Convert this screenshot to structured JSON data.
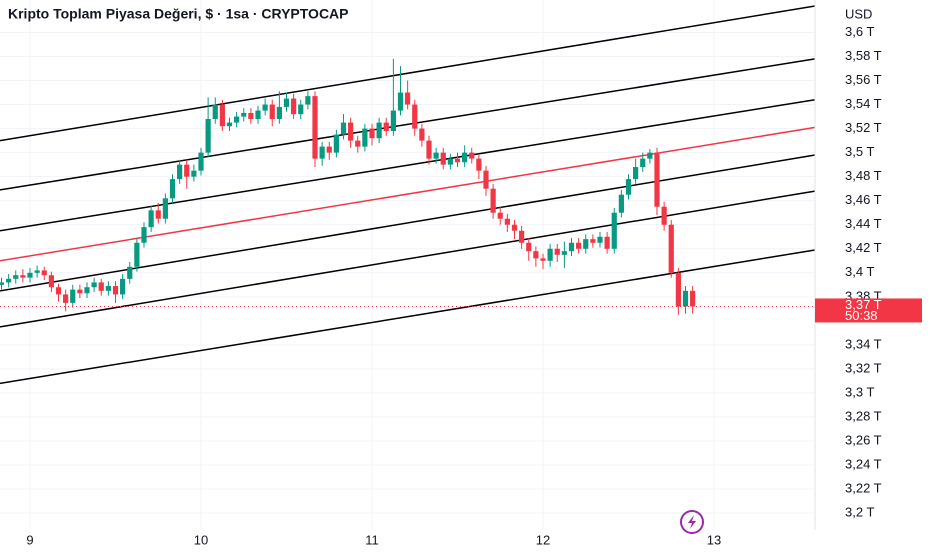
{
  "chart_data": {
    "type": "candlestick",
    "title": "Kripto Toplam Piyasa Değeri, $ · 1sa · CRYPTOCAP",
    "currency": "USD",
    "up_color": "#089981",
    "down_color": "#f23645",
    "grid": true,
    "categories": [
      null,
      null,
      null,
      null,
      "9",
      null,
      null,
      null,
      null,
      null,
      null,
      null,
      null,
      null,
      null,
      null,
      null,
      null,
      null,
      null,
      null,
      null,
      null,
      null,
      null,
      null,
      null,
      null,
      "10",
      null,
      null,
      null,
      null,
      null,
      null,
      null,
      null,
      null,
      null,
      null,
      null,
      null,
      null,
      null,
      null,
      null,
      null,
      null,
      null,
      null,
      null,
      null,
      "11",
      null,
      null,
      null,
      null,
      null,
      null,
      null,
      null,
      null,
      null,
      null,
      null,
      null,
      null,
      null,
      null,
      null,
      null,
      null,
      null,
      null,
      null,
      null,
      "12",
      null,
      null,
      null,
      null,
      null,
      null,
      null,
      null,
      null,
      null,
      null,
      null,
      null,
      null,
      null,
      null,
      null,
      null,
      null,
      null,
      null,
      null,
      null,
      "13"
    ],
    "open": [
      3.39,
      3.392,
      3.395,
      3.398,
      3.396,
      3.4,
      3.402,
      3.398,
      3.388,
      3.382,
      3.375,
      3.386,
      3.383,
      3.388,
      3.392,
      3.385,
      3.389,
      3.382,
      3.395,
      3.405,
      3.425,
      3.438,
      3.452,
      3.445,
      3.462,
      3.478,
      3.49,
      3.48,
      3.485,
      3.5,
      3.528,
      3.54,
      3.522,
      3.525,
      3.53,
      3.533,
      3.528,
      3.535,
      3.54,
      3.528,
      3.538,
      3.545,
      3.532,
      3.54,
      3.547,
      3.495,
      3.505,
      3.5,
      3.515,
      3.525,
      3.51,
      3.505,
      3.52,
      3.512,
      3.525,
      3.518,
      3.535,
      3.55,
      3.54,
      3.52,
      3.51,
      3.495,
      3.5,
      3.49,
      3.495,
      3.492,
      3.5,
      3.495,
      3.485,
      3.47,
      3.45,
      3.445,
      3.44,
      3.435,
      3.425,
      3.418,
      3.412,
      3.41,
      3.42,
      3.415,
      3.418,
      3.425,
      3.42,
      3.428,
      3.425,
      3.43,
      3.42,
      3.45,
      3.465,
      3.478,
      3.488,
      3.495,
      3.5,
      3.455,
      3.44,
      3.4,
      3.372,
      3.385,
      null,
      null,
      null
    ],
    "high": [
      3.396,
      3.399,
      3.402,
      3.403,
      3.404,
      3.406,
      3.405,
      3.401,
      3.391,
      3.386,
      3.39,
      3.39,
      3.392,
      3.396,
      3.395,
      3.393,
      3.393,
      3.399,
      3.409,
      3.429,
      3.442,
      3.456,
      3.458,
      3.466,
      3.482,
      3.494,
      3.494,
      3.49,
      3.504,
      3.546,
      3.546,
      3.544,
      3.529,
      3.534,
      3.537,
      3.537,
      3.539,
      3.545,
      3.544,
      3.551,
      3.55,
      3.549,
      3.544,
      3.551,
      3.551,
      3.509,
      3.509,
      3.519,
      3.532,
      3.529,
      3.514,
      3.524,
      3.524,
      3.529,
      3.529,
      3.578,
      3.572,
      3.56,
      3.544,
      3.524,
      3.514,
      3.504,
      3.504,
      3.499,
      3.5,
      3.506,
      3.504,
      3.499,
      3.489,
      3.474,
      3.455,
      3.449,
      3.444,
      3.439,
      3.429,
      3.422,
      3.416,
      3.424,
      3.424,
      3.426,
      3.429,
      3.429,
      3.432,
      3.432,
      3.434,
      3.434,
      3.454,
      3.469,
      3.482,
      3.495,
      3.5,
      3.503,
      3.504,
      3.459,
      3.444,
      3.404,
      3.389,
      3.389,
      null,
      null,
      null
    ],
    "low": [
      3.386,
      3.388,
      3.391,
      3.392,
      3.392,
      3.396,
      3.394,
      3.384,
      3.376,
      3.368,
      3.371,
      3.379,
      3.379,
      3.384,
      3.381,
      3.381,
      3.375,
      3.378,
      3.391,
      3.401,
      3.421,
      3.434,
      3.441,
      3.441,
      3.458,
      3.474,
      3.47,
      3.476,
      3.481,
      3.496,
      3.524,
      3.518,
      3.518,
      3.521,
      3.526,
      3.524,
      3.524,
      3.531,
      3.522,
      3.524,
      3.534,
      3.528,
      3.528,
      3.536,
      3.488,
      3.489,
      3.494,
      3.496,
      3.511,
      3.504,
      3.5,
      3.501,
      3.506,
      3.508,
      3.514,
      3.514,
      3.531,
      3.536,
      3.514,
      3.505,
      3.49,
      3.491,
      3.486,
      3.486,
      3.488,
      3.488,
      3.491,
      3.478,
      3.464,
      3.445,
      3.44,
      3.434,
      3.428,
      3.42,
      3.41,
      3.405,
      3.403,
      3.405,
      3.409,
      3.404,
      3.414,
      3.416,
      3.416,
      3.421,
      3.421,
      3.416,
      3.416,
      3.446,
      3.461,
      3.474,
      3.484,
      3.491,
      3.448,
      3.435,
      3.396,
      3.365,
      3.366,
      3.366,
      null,
      null,
      null
    ],
    "close": [
      3.392,
      3.395,
      3.398,
      3.396,
      3.4,
      3.402,
      3.398,
      3.388,
      3.382,
      3.375,
      3.386,
      3.383,
      3.388,
      3.392,
      3.385,
      3.389,
      3.382,
      3.395,
      3.405,
      3.425,
      3.438,
      3.452,
      3.445,
      3.462,
      3.478,
      3.49,
      3.48,
      3.485,
      3.5,
      3.528,
      3.54,
      3.522,
      3.525,
      3.53,
      3.533,
      3.528,
      3.535,
      3.54,
      3.528,
      3.538,
      3.545,
      3.532,
      3.54,
      3.547,
      3.495,
      3.505,
      3.5,
      3.515,
      3.525,
      3.51,
      3.505,
      3.52,
      3.512,
      3.525,
      3.518,
      3.535,
      3.55,
      3.54,
      3.52,
      3.51,
      3.495,
      3.5,
      3.49,
      3.495,
      3.492,
      3.5,
      3.495,
      3.485,
      3.47,
      3.45,
      3.445,
      3.44,
      3.435,
      3.425,
      3.418,
      3.412,
      3.41,
      3.42,
      3.415,
      3.418,
      3.425,
      3.42,
      3.428,
      3.425,
      3.43,
      3.42,
      3.45,
      3.465,
      3.478,
      3.488,
      3.495,
      3.5,
      3.455,
      3.44,
      3.4,
      3.372,
      3.385,
      3.372,
      null,
      null,
      null
    ],
    "channels": [
      {
        "color": "#000000",
        "values": [
          3.51,
          3.622
        ]
      },
      {
        "color": "#000000",
        "values": [
          3.469,
          3.578
        ]
      },
      {
        "color": "#000000",
        "values": [
          3.435,
          3.544
        ]
      },
      {
        "color": "#f23645",
        "values": [
          3.41,
          3.521
        ]
      },
      {
        "color": "#000000",
        "values": [
          3.385,
          3.498
        ]
      },
      {
        "color": "#000000",
        "values": [
          3.355,
          3.468
        ]
      },
      {
        "color": "#000000",
        "values": [
          3.308,
          3.419
        ]
      }
    ],
    "last_price": {
      "value": 3.372,
      "label": "3,37 T",
      "countdown": "50:38",
      "color": "#f23645"
    },
    "ylim": [
      3.186,
      3.627
    ],
    "yticks": [
      {
        "value": 3.6,
        "label": "3,6 T"
      },
      {
        "value": 3.58,
        "label": "3,58 T"
      },
      {
        "value": 3.56,
        "label": "3,56 T"
      },
      {
        "value": 3.54,
        "label": "3,54 T"
      },
      {
        "value": 3.52,
        "label": "3,52 T"
      },
      {
        "value": 3.5,
        "label": "3,5 T"
      },
      {
        "value": 3.48,
        "label": "3,48 T"
      },
      {
        "value": 3.46,
        "label": "3,46 T"
      },
      {
        "value": 3.44,
        "label": "3,44 T"
      },
      {
        "value": 3.42,
        "label": "3,42 T"
      },
      {
        "value": 3.4,
        "label": "3,4 T"
      },
      {
        "value": 3.38,
        "label": "3,38 T"
      },
      {
        "value": 3.34,
        "label": "3,34 T"
      },
      {
        "value": 3.32,
        "label": "3,32 T"
      },
      {
        "value": 3.3,
        "label": "3,3 T"
      },
      {
        "value": 3.28,
        "label": "3,28 T"
      },
      {
        "value": 3.26,
        "label": "3,26 T"
      },
      {
        "value": 3.24,
        "label": "3,24 T"
      },
      {
        "value": 3.22,
        "label": "3,22 T"
      },
      {
        "value": 3.2,
        "label": "3,2 T"
      }
    ]
  }
}
